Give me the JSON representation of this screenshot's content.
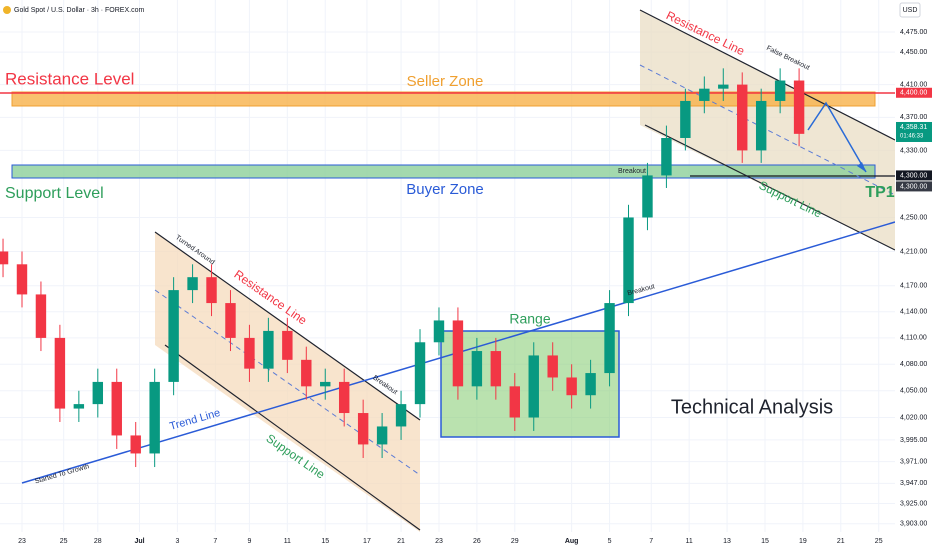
{
  "chart_data": {
    "type": "candlestick",
    "title": "Gold Spot / U.S. Dollar · 3h · FOREX.com",
    "currency": "USD",
    "log_scale": true,
    "grid": true,
    "up_color": "#089981",
    "down_color": "#f23645",
    "xlim": [
      -0.58,
      23.03
    ],
    "xticks": [
      {
        "value": 0,
        "label": "23"
      },
      {
        "value": 1.1,
        "label": "25"
      },
      {
        "value": 2,
        "label": "28"
      },
      {
        "value": 3.1,
        "label": "Jul"
      },
      {
        "value": 4.1,
        "label": "3"
      },
      {
        "value": 5.1,
        "label": "7"
      },
      {
        "value": 6,
        "label": "9"
      },
      {
        "value": 7,
        "label": "11"
      },
      {
        "value": 8,
        "label": "15"
      },
      {
        "value": 9.1,
        "label": "17"
      },
      {
        "value": 10,
        "label": "21"
      },
      {
        "value": 11,
        "label": "23"
      },
      {
        "value": 12,
        "label": "26"
      },
      {
        "value": 13,
        "label": "29"
      },
      {
        "value": 14.5,
        "label": "Aug"
      },
      {
        "value": 15.5,
        "label": "5"
      },
      {
        "value": 16.6,
        "label": "7"
      },
      {
        "value": 17.6,
        "label": "11"
      },
      {
        "value": 18.6,
        "label": "13"
      },
      {
        "value": 19.6,
        "label": "15"
      },
      {
        "value": 20.6,
        "label": "19"
      },
      {
        "value": 21.6,
        "label": "21"
      },
      {
        "value": 22.6,
        "label": "25"
      }
    ],
    "ylim": [
      3894,
      4515
    ],
    "yticks": [
      {
        "value": 4475,
        "label": "4,475.00"
      },
      {
        "value": 4450,
        "label": "4,450.00"
      },
      {
        "value": 4410,
        "label": "4,410.00"
      },
      {
        "value": 4370,
        "label": "4,370.00"
      },
      {
        "value": 4330,
        "label": "4,330.00"
      },
      {
        "value": 4250,
        "label": "4,250.00"
      },
      {
        "value": 4210,
        "label": "4,210.00"
      },
      {
        "value": 4170,
        "label": "4,170.00"
      },
      {
        "value": 4140,
        "label": "4,140.00"
      },
      {
        "value": 4110,
        "label": "4,110.00"
      },
      {
        "value": 4080,
        "label": "4,080.00"
      },
      {
        "value": 4050,
        "label": "4,050.00"
      },
      {
        "value": 4020,
        "label": "4,020.00"
      },
      {
        "value": 3995,
        "label": "3,995.00"
      },
      {
        "value": 3971,
        "label": "3,971.00"
      },
      {
        "value": 3947,
        "label": "3,947.00"
      },
      {
        "value": 3925,
        "label": "3,925.00"
      },
      {
        "value": 3903,
        "label": "3,903.00"
      }
    ],
    "price_labels": [
      {
        "value": 4400,
        "label": "4,400.00",
        "color": "#f23645"
      },
      {
        "value": 4358.31,
        "label": "4,358.31",
        "color": "#089981"
      },
      {
        "value": 4300,
        "label": "4,300.00",
        "color": "#131722"
      },
      {
        "value": 4300,
        "label": "4,300.00",
        "color": "#363a45"
      }
    ],
    "countdown": "01:46:33",
    "x": [
      -0.5,
      0,
      0.5,
      1,
      1.5,
      2,
      2.5,
      3,
      3.5,
      4,
      4.5,
      5,
      5.5,
      6,
      6.5,
      7,
      7.5,
      8,
      8.5,
      9,
      9.5,
      10,
      10.5,
      11,
      11.5,
      12,
      12.5,
      13,
      13.5,
      14,
      14.5,
      15,
      15.5,
      16,
      16.5,
      17,
      17.5,
      18,
      18.5,
      19,
      19.5,
      20,
      20.5
    ],
    "open": [
      4210,
      4195,
      4160,
      4110,
      4030,
      4035,
      4060,
      4000,
      3980,
      4060,
      4165,
      4180,
      4150,
      4110,
      4075,
      4118,
      4085,
      4055,
      4060,
      4025,
      3990,
      4010,
      4035,
      4105,
      4130,
      4055,
      4095,
      4055,
      4020,
      4090,
      4065,
      4045,
      4070,
      4150,
      4250,
      4300,
      4345,
      4390,
      4405,
      4410,
      4330,
      4390,
      4415
    ],
    "high": [
      4225,
      4210,
      4175,
      4125,
      4050,
      4075,
      4075,
      4015,
      4075,
      4180,
      4195,
      4195,
      4165,
      4125,
      4133,
      4133,
      4100,
      4075,
      4075,
      4040,
      4025,
      4050,
      4120,
      4145,
      4145,
      4110,
      4110,
      4070,
      4105,
      4105,
      4080,
      4085,
      4165,
      4265,
      4315,
      4360,
      4405,
      4420,
      4430,
      4425,
      4405,
      4430,
      4430
    ],
    "low": [
      4180,
      4145,
      4095,
      4015,
      4015,
      4020,
      3985,
      3965,
      3965,
      4045,
      4150,
      4135,
      4095,
      4060,
      4060,
      4070,
      4040,
      4040,
      4010,
      3975,
      3975,
      3995,
      4020,
      4090,
      4040,
      4040,
      4040,
      4005,
      4005,
      4050,
      4030,
      4030,
      4055,
      4135,
      4235,
      4285,
      4330,
      4375,
      4390,
      4315,
      4315,
      4375,
      4335
    ],
    "close": [
      4195,
      4160,
      4110,
      4030,
      4035,
      4060,
      4000,
      3980,
      4060,
      4165,
      4180,
      4150,
      4110,
      4075,
      4118,
      4085,
      4055,
      4060,
      4025,
      3990,
      4010,
      4035,
      4105,
      4130,
      4055,
      4095,
      4055,
      4020,
      4090,
      4065,
      4045,
      4070,
      4150,
      4250,
      4300,
      4345,
      4390,
      4405,
      4410,
      4330,
      4390,
      4415,
      4350
    ],
    "annotations": {
      "resistance_level": "Resistance Level",
      "seller_zone": "Seller Zone",
      "support_level": "Support Level",
      "buyer_zone": "Buyer Zone",
      "tp1": "TP1",
      "range": "Range",
      "technical_analysis": "Technical Analysis",
      "trend_line": "Trend Line",
      "turned_around": "Turned Around",
      "resistance_line_left": "Resistance Line",
      "support_line_left": "Support Line",
      "breakout_left": "Breakout",
      "started_to_growth": "Started To Growth",
      "breakout_trend": "Breakout",
      "breakout_zone": "Breakout",
      "resistance_line_right": "Resistance Line",
      "false_breakout": "False Breakout",
      "support_line_right": "Support Line"
    }
  }
}
